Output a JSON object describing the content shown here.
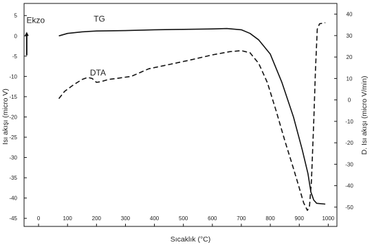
{
  "chart_data": {
    "type": "line",
    "xlabel": "Sıcaklık  (°C)",
    "ylabel_left": "Isı akışı (micro V)",
    "ylabel_right": "D. Isı akışı (micro V/min)",
    "xlim": [
      -50,
      1030
    ],
    "ylim_left": [
      -47,
      8
    ],
    "ylim_right": [
      -59,
      45
    ],
    "xticks": [
      0,
      100,
      200,
      300,
      400,
      500,
      600,
      700,
      800,
      900,
      1000
    ],
    "yticks_left": [
      5,
      0,
      -5,
      -10,
      -15,
      -20,
      -25,
      -30,
      -35,
      -40,
      -45
    ],
    "yticks_right": [
      40,
      30,
      20,
      10,
      0,
      -10,
      -20,
      -30,
      -40,
      -50
    ],
    "annotations": [
      {
        "text": "Ekzo",
        "x": -10,
        "y": 3.2
      },
      {
        "text": "TG",
        "x": 210,
        "y": 3.5
      },
      {
        "text": "DTA",
        "x": 205,
        "y": -9.8
      }
    ],
    "series": [
      {
        "name": "TG",
        "axis": "left",
        "style": "solid",
        "points": [
          [
            70,
            0.0
          ],
          [
            100,
            0.6
          ],
          [
            150,
            1.0
          ],
          [
            200,
            1.2
          ],
          [
            300,
            1.3
          ],
          [
            400,
            1.5
          ],
          [
            500,
            1.6
          ],
          [
            600,
            1.7
          ],
          [
            650,
            1.8
          ],
          [
            700,
            1.5
          ],
          [
            730,
            0.6
          ],
          [
            760,
            -1.0
          ],
          [
            800,
            -4.5
          ],
          [
            840,
            -11.5
          ],
          [
            880,
            -20.0
          ],
          [
            910,
            -28.0
          ],
          [
            930,
            -34.0
          ],
          [
            940,
            -38.5
          ],
          [
            950,
            -40.5
          ],
          [
            960,
            -41.3
          ],
          [
            990,
            -41.5
          ]
        ]
      },
      {
        "name": "DTA",
        "axis": "right",
        "style": "dashed",
        "points": [
          [
            70,
            0.6
          ],
          [
            90,
            4.0
          ],
          [
            120,
            7.0
          ],
          [
            150,
            9.5
          ],
          [
            170,
            10.5
          ],
          [
            185,
            10.0
          ],
          [
            200,
            8.2
          ],
          [
            215,
            8.5
          ],
          [
            240,
            9.5
          ],
          [
            280,
            10.2
          ],
          [
            320,
            11.0
          ],
          [
            380,
            14.5
          ],
          [
            450,
            16.5
          ],
          [
            520,
            18.5
          ],
          [
            600,
            21.0
          ],
          [
            660,
            22.5
          ],
          [
            700,
            23.0
          ],
          [
            730,
            22.0
          ],
          [
            760,
            17.0
          ],
          [
            790,
            8.0
          ],
          [
            820,
            -5.0
          ],
          [
            850,
            -19.0
          ],
          [
            880,
            -32.0
          ],
          [
            900,
            -41.0
          ],
          [
            915,
            -48.0
          ],
          [
            928,
            -51.5
          ],
          [
            935,
            -50.0
          ],
          [
            942,
            -38.0
          ],
          [
            950,
            -10.0
          ],
          [
            956,
            14.0
          ],
          [
            962,
            33.0
          ],
          [
            970,
            35.5
          ],
          [
            990,
            36.0
          ]
        ]
      }
    ]
  }
}
